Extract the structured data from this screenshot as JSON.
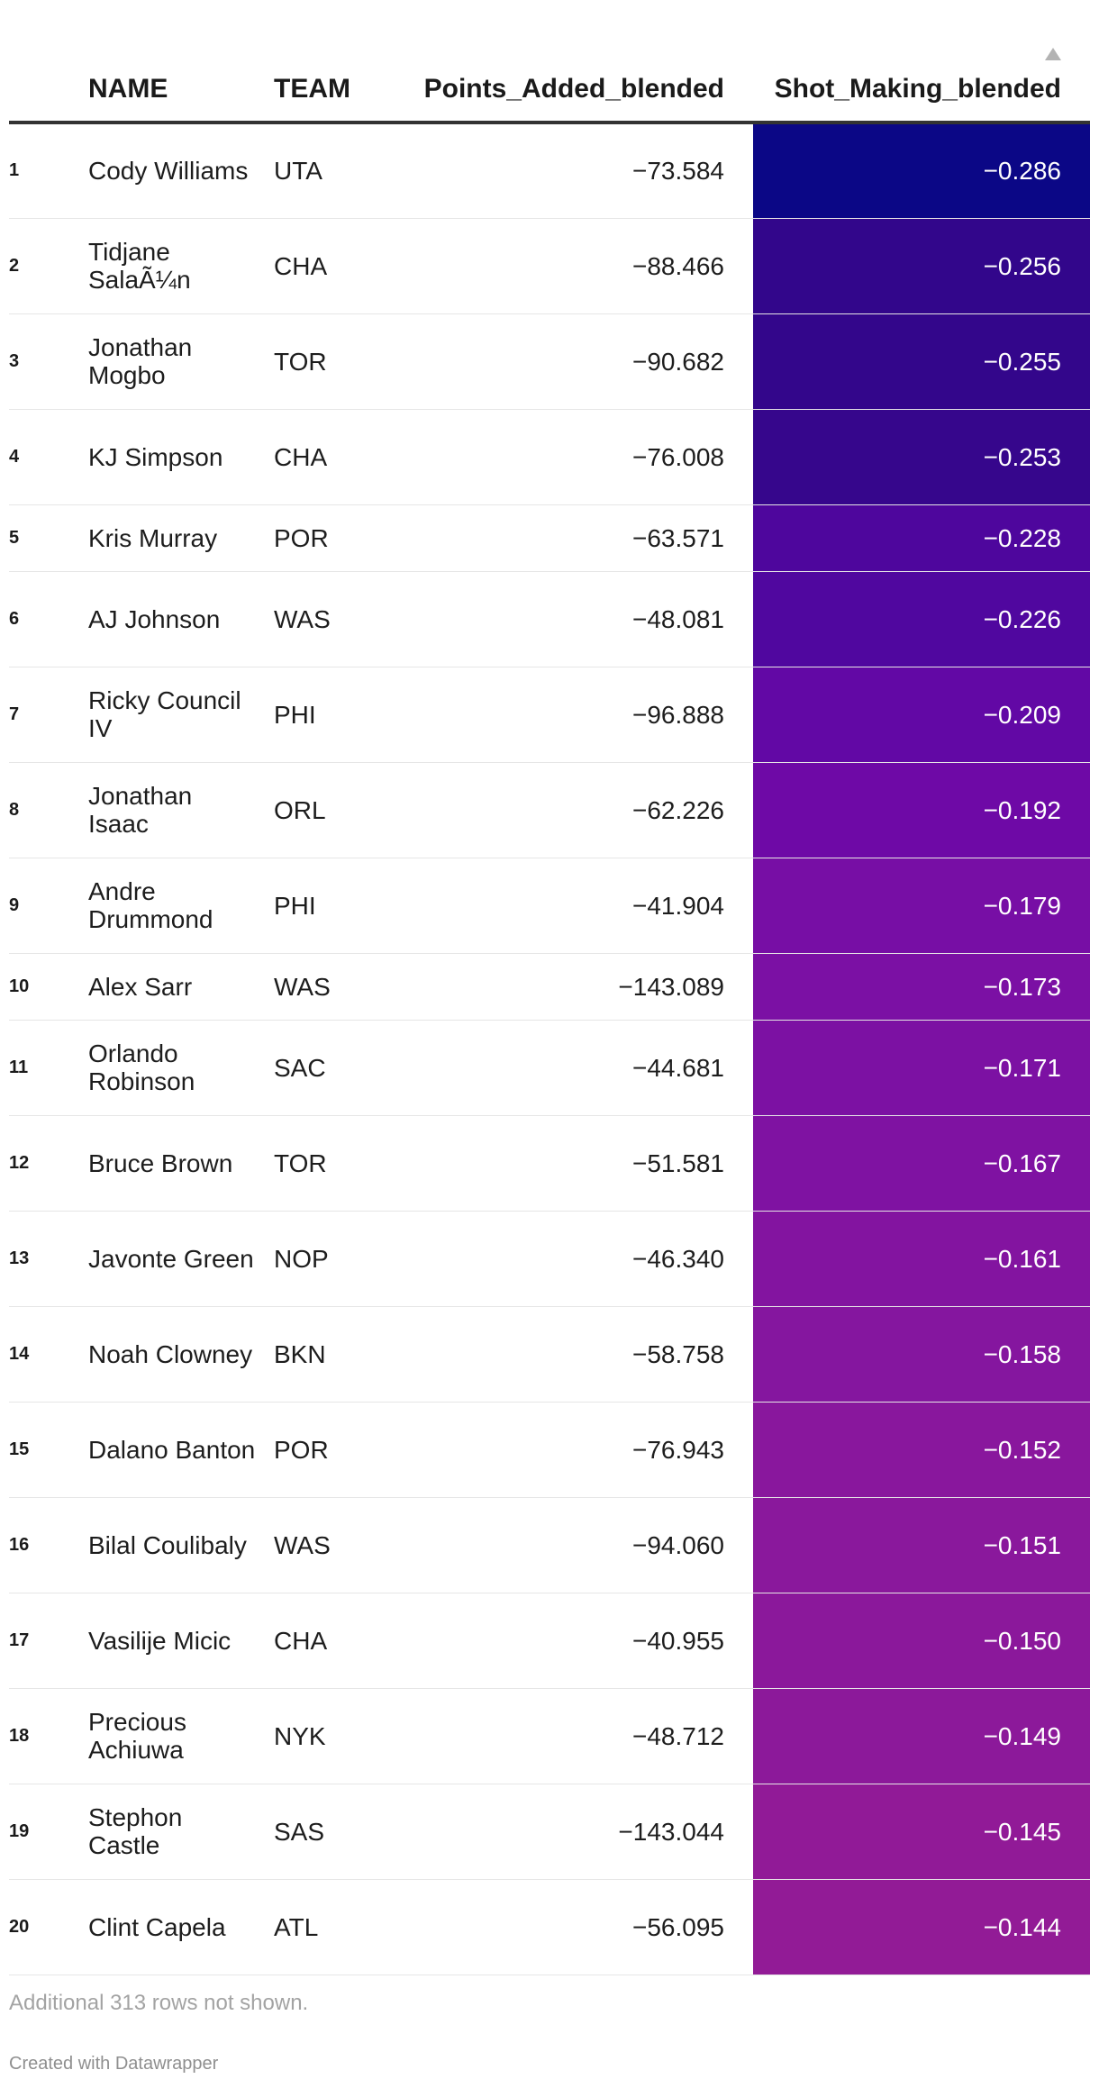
{
  "chart_data": {
    "type": "table",
    "columns": [
      "",
      "NAME",
      "TEAM",
      "Points_Added_blended",
      "Shot_Making_blended"
    ],
    "sort": {
      "column": "Shot_Making_blended",
      "direction": "ascending"
    },
    "heat_column": "Shot_Making_blended",
    "colors": {
      "low": "#0b0786",
      "high": "#9a1c94"
    },
    "rows": [
      {
        "rank": "1",
        "name": "Cody Williams",
        "team": "UTA",
        "points_added": "−73.584",
        "shot_making": "−0.286",
        "color": "#0b0786"
      },
      {
        "rank": "2",
        "name": "Tidjane SalaÃ¼n",
        "team": "CHA",
        "points_added": "−88.466",
        "shot_making": "−0.256",
        "color": "#32068b"
      },
      {
        "rank": "3",
        "name": "Jonathan Mogbo",
        "team": "TOR",
        "points_added": "−90.682",
        "shot_making": "−0.255",
        "color": "#33068b"
      },
      {
        "rank": "4",
        "name": "KJ Simpson",
        "team": "CHA",
        "points_added": "−76.008",
        "shot_making": "−0.253",
        "color": "#36068c"
      },
      {
        "rank": "5",
        "name": "Kris Murray",
        "team": "POR",
        "points_added": "−63.571",
        "shot_making": "−0.228",
        "color": "#4e069d"
      },
      {
        "rank": "6",
        "name": "AJ Johnson",
        "team": "WAS",
        "points_added": "−48.081",
        "shot_making": "−0.226",
        "color": "#50079f"
      },
      {
        "rank": "7",
        "name": "Ricky Council IV",
        "team": "PHI",
        "points_added": "−96.888",
        "shot_making": "−0.209",
        "color": "#6208a5"
      },
      {
        "rank": "8",
        "name": "Jonathan Isaac",
        "team": "ORL",
        "points_added": "−62.226",
        "shot_making": "−0.192",
        "color": "#6e09a6"
      },
      {
        "rank": "9",
        "name": "Andre Drummond",
        "team": "PHI",
        "points_added": "−41.904",
        "shot_making": "−0.179",
        "color": "#770ea5"
      },
      {
        "rank": "10",
        "name": "Alex Sarr",
        "team": "WAS",
        "points_added": "−143.089",
        "shot_making": "−0.173",
        "color": "#7b10a4"
      },
      {
        "rank": "11",
        "name": "Orlando Robinson",
        "team": "SAC",
        "points_added": "−44.681",
        "shot_making": "−0.171",
        "color": "#7c11a3"
      },
      {
        "rank": "12",
        "name": "Bruce Brown",
        "team": "TOR",
        "points_added": "−51.581",
        "shot_making": "−0.167",
        "color": "#7f12a2"
      },
      {
        "rank": "13",
        "name": "Javonte Green",
        "team": "NOP",
        "points_added": "−46.340",
        "shot_making": "−0.161",
        "color": "#8314a0"
      },
      {
        "rank": "14",
        "name": "Noah Clowney",
        "team": "BKN",
        "points_added": "−58.758",
        "shot_making": "−0.158",
        "color": "#85169f"
      },
      {
        "rank": "15",
        "name": "Dalano Banton",
        "team": "POR",
        "points_added": "−76.943",
        "shot_making": "−0.152",
        "color": "#89179d"
      },
      {
        "rank": "16",
        "name": "Bilal Coulibaly",
        "team": "WAS",
        "points_added": "−94.060",
        "shot_making": "−0.151",
        "color": "#8a189c"
      },
      {
        "rank": "17",
        "name": "Vasilije Micic",
        "team": "CHA",
        "points_added": "−40.955",
        "shot_making": "−0.150",
        "color": "#8b189b"
      },
      {
        "rank": "18",
        "name": "Precious Achiuwa",
        "team": "NYK",
        "points_added": "−48.712",
        "shot_making": "−0.149",
        "color": "#8c199a"
      },
      {
        "rank": "19",
        "name": "Stephon Castle",
        "team": "SAS",
        "points_added": "−143.044",
        "shot_making": "−0.145",
        "color": "#911a97"
      },
      {
        "rank": "20",
        "name": "Clint Capela",
        "team": "ATL",
        "points_added": "−56.095",
        "shot_making": "−0.144",
        "color": "#921b96"
      }
    ]
  },
  "footer": {
    "notes": "Additional 313 rows not shown.",
    "credit": "Created with Datawrapper"
  }
}
